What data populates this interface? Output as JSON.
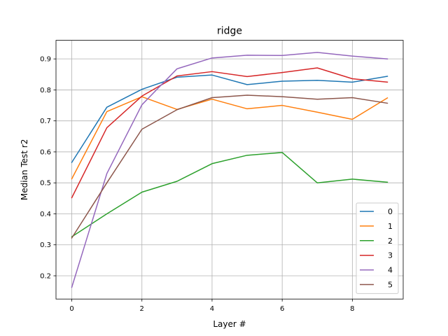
{
  "chart_data": {
    "type": "line",
    "title": "ridge",
    "xlabel": "Layer #",
    "ylabel": "Median Test r2",
    "xlim": [
      -0.45,
      9.45
    ],
    "ylim": [
      0.125,
      0.96
    ],
    "x": [
      0,
      1,
      2,
      3,
      4,
      5,
      6,
      7,
      8,
      9
    ],
    "xticks": [
      0,
      2,
      4,
      6,
      8
    ],
    "yticks": [
      0.2,
      0.3,
      0.4,
      0.5,
      0.6,
      0.7,
      0.8,
      0.9
    ],
    "grid": true,
    "legend": "lower-right",
    "series": [
      {
        "name": "0",
        "color": "#1f77b4",
        "values": [
          0.566,
          0.744,
          0.802,
          0.841,
          0.848,
          0.817,
          0.828,
          0.831,
          0.825,
          0.844
        ]
      },
      {
        "name": "1",
        "color": "#ff7f0e",
        "values": [
          0.513,
          0.73,
          0.778,
          0.737,
          0.77,
          0.739,
          0.75,
          0.728,
          0.705,
          0.774
        ]
      },
      {
        "name": "2",
        "color": "#2ca02c",
        "values": [
          0.326,
          0.4,
          0.47,
          0.505,
          0.562,
          0.589,
          0.598,
          0.5,
          0.512,
          0.502
        ]
      },
      {
        "name": "3",
        "color": "#d62728",
        "values": [
          0.452,
          0.678,
          0.78,
          0.845,
          0.859,
          0.843,
          0.856,
          0.871,
          0.836,
          0.825
        ]
      },
      {
        "name": "4",
        "color": "#9467bd",
        "values": [
          0.163,
          0.53,
          0.752,
          0.868,
          0.903,
          0.912,
          0.911,
          0.921,
          0.909,
          0.9
        ]
      },
      {
        "name": "5",
        "color": "#8c564b",
        "values": [
          0.322,
          0.5,
          0.673,
          0.736,
          0.775,
          0.783,
          0.778,
          0.77,
          0.775,
          0.757
        ]
      }
    ]
  }
}
